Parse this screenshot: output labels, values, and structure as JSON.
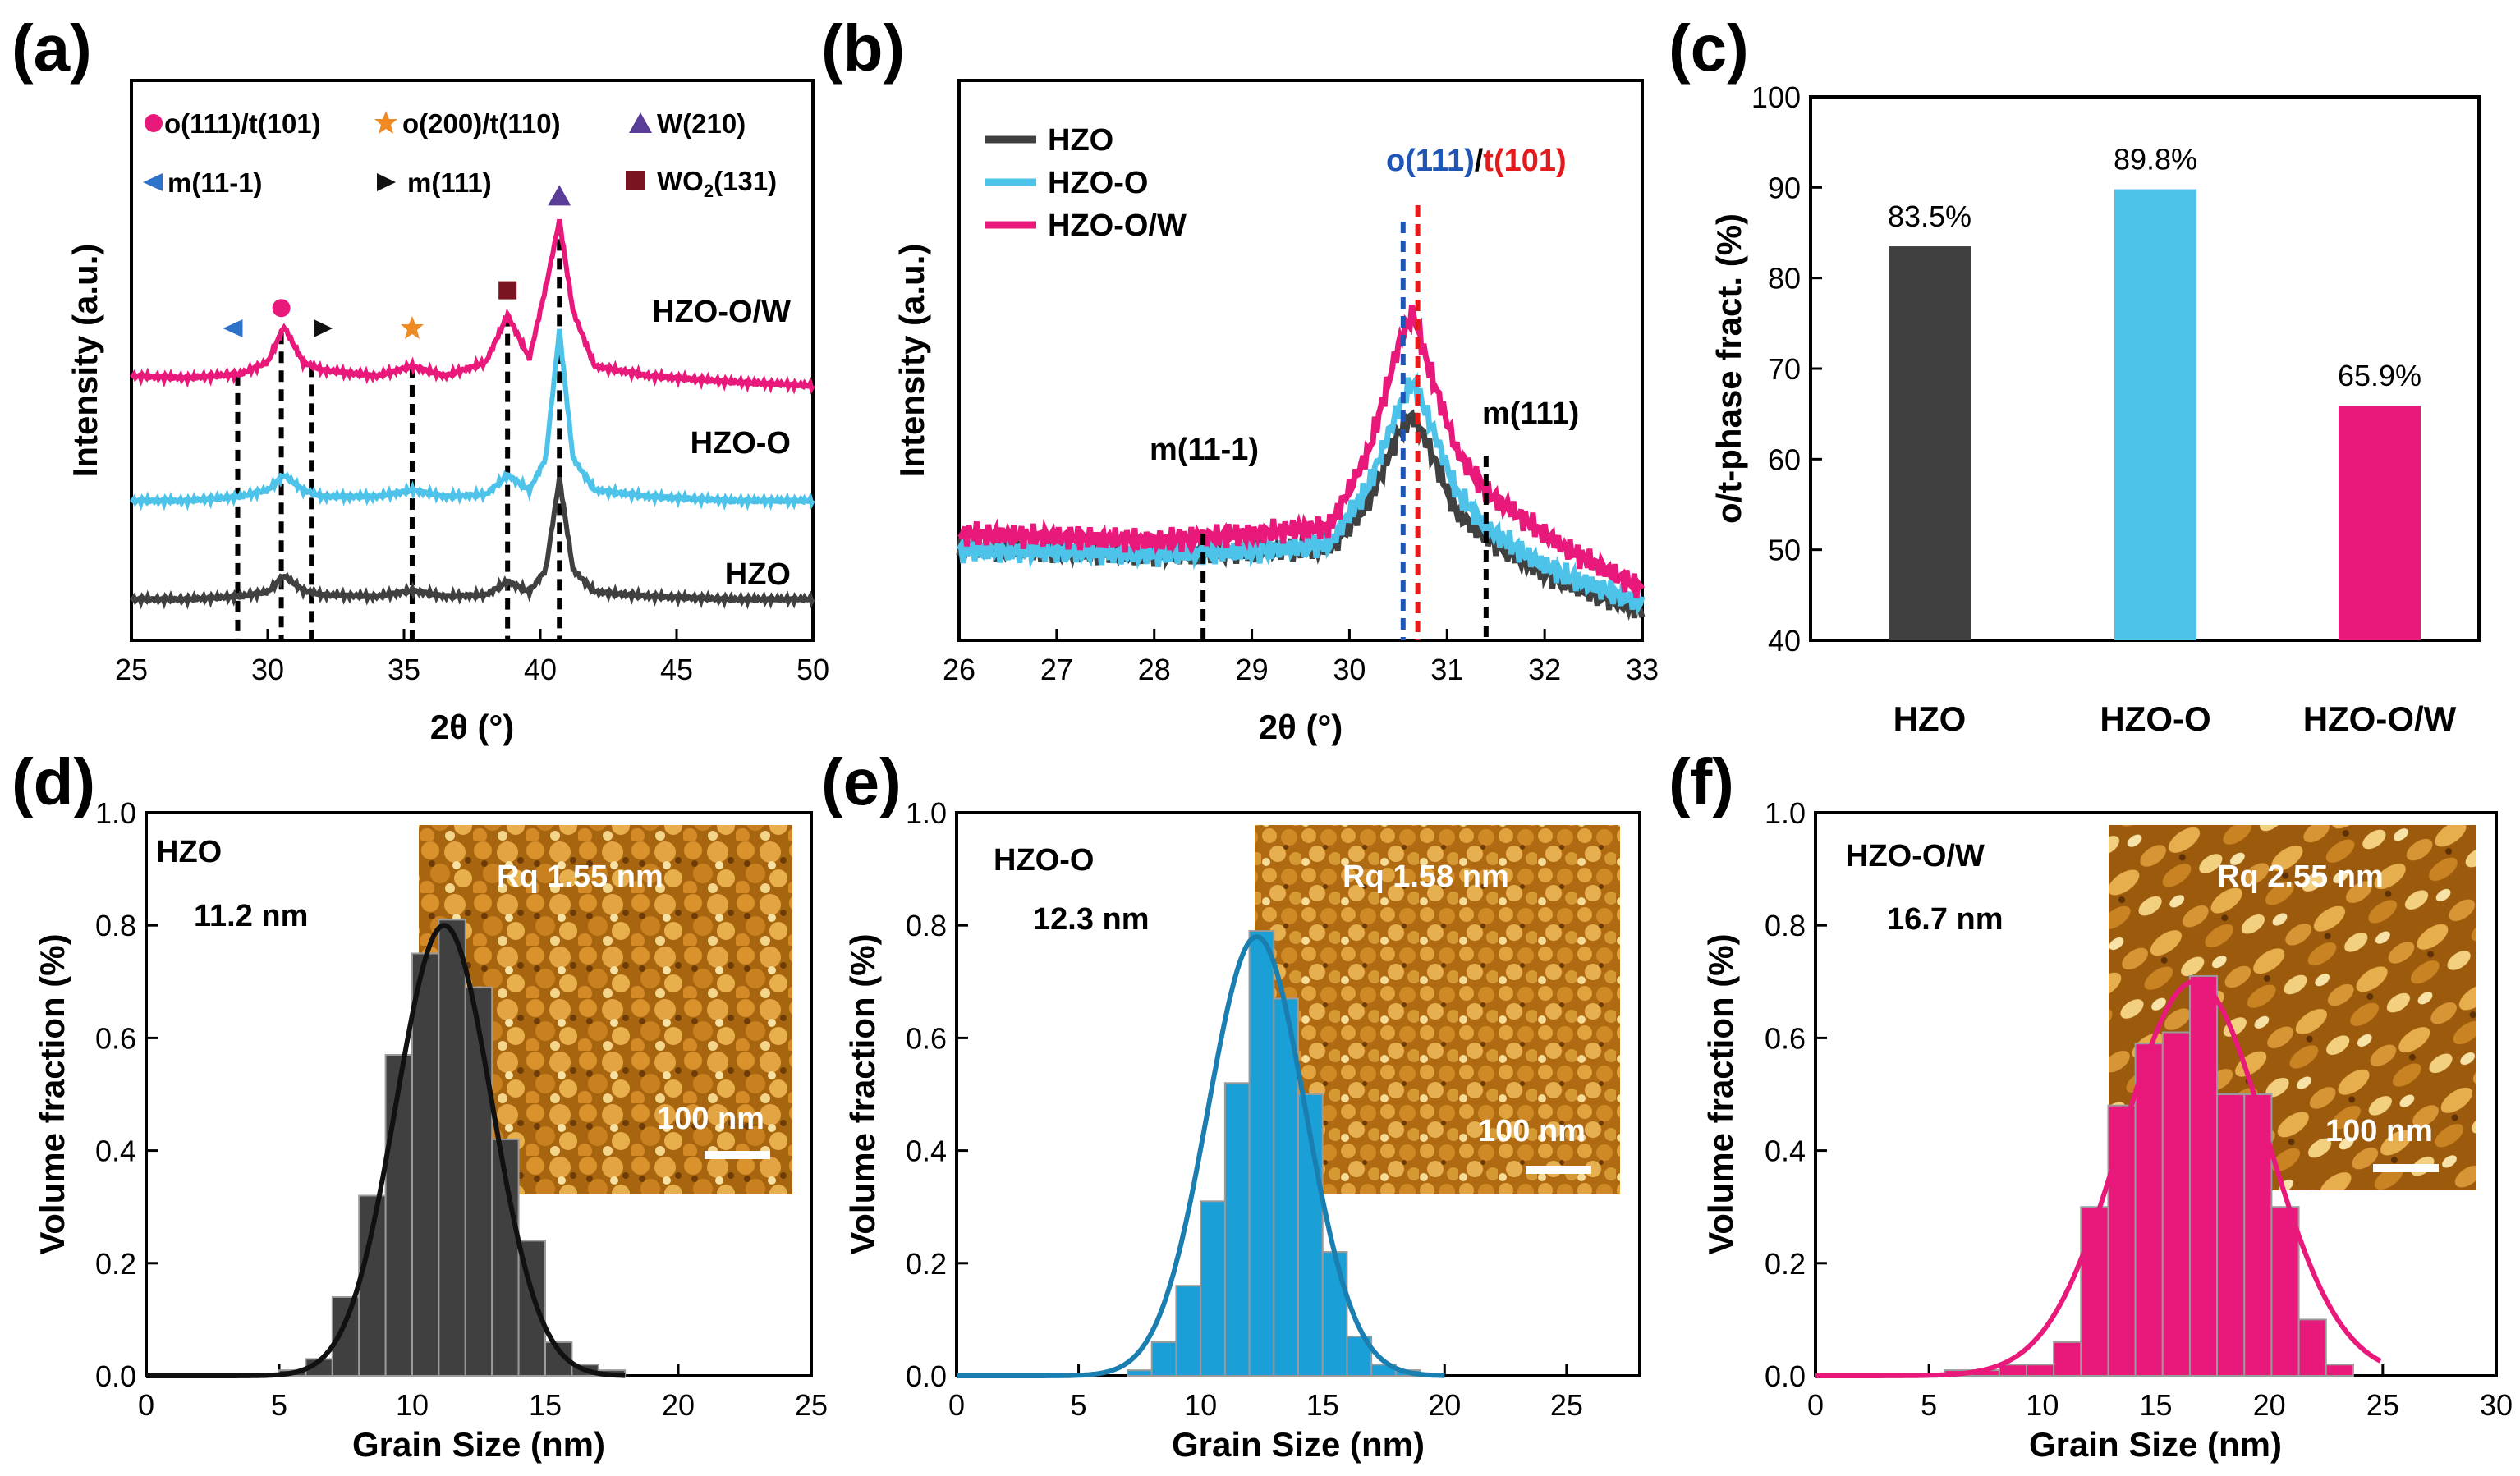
{
  "figure_labels": {
    "a": "(a)",
    "b": "(b)",
    "c": "(c)",
    "d": "(d)",
    "e": "(e)",
    "f": "(f)"
  },
  "colors": {
    "HZO": "#404040",
    "HZO-O": "#4ec3ea",
    "HZO-O/W": "#e8197a",
    "o111": "#1f56b5",
    "t101": "#e41a1c",
    "inset": "#9a5a12"
  },
  "chart_data": [
    {
      "id": "a",
      "type": "line",
      "xlabel": "2θ (°)",
      "ylabel": "Intensity (a.u.)",
      "xlim": [
        25,
        50
      ],
      "xticks": [
        "25",
        "30",
        "35",
        "40",
        "45",
        "50"
      ],
      "series": [
        {
          "name": "HZO",
          "label": "HZO",
          "color": "#404040",
          "x": [
            25,
            27,
            29,
            30,
            30.6,
            31.3,
            32,
            34,
            35.3,
            36.5,
            38,
            38.8,
            39.6,
            40.2,
            40.7,
            41.2,
            42,
            44,
            47,
            50
          ],
          "y": [
            0.0,
            0.0,
            0.02,
            0.05,
            0.16,
            0.06,
            0.03,
            0.02,
            0.06,
            0.02,
            0.03,
            0.12,
            0.05,
            0.2,
            0.82,
            0.2,
            0.05,
            0.02,
            0.0,
            0.0
          ]
        },
        {
          "name": "HZO-O",
          "label": "HZO-O",
          "color": "#4ec3ea",
          "x": [
            25,
            27,
            29,
            30,
            30.6,
            31.3,
            32,
            34,
            35.3,
            36.5,
            38,
            38.8,
            39.6,
            40.2,
            40.7,
            41.2,
            42,
            44,
            47,
            50
          ],
          "y": [
            0.0,
            0.0,
            0.02,
            0.05,
            0.12,
            0.05,
            0.02,
            0.02,
            0.05,
            0.02,
            0.03,
            0.12,
            0.05,
            0.2,
            0.8,
            0.2,
            0.05,
            0.02,
            0.0,
            0.0
          ]
        },
        {
          "name": "HZO-O/W",
          "label": "HZO-O/W",
          "color": "#e8197a",
          "x": [
            25,
            27,
            29,
            30,
            30.6,
            31.3,
            32,
            34,
            35.3,
            36.5,
            38,
            38.8,
            39.6,
            40.2,
            40.7,
            41.2,
            42,
            44,
            47,
            50
          ],
          "y": [
            0.05,
            0.04,
            0.06,
            0.12,
            0.3,
            0.12,
            0.08,
            0.05,
            0.1,
            0.05,
            0.12,
            0.36,
            0.14,
            0.5,
            0.84,
            0.38,
            0.1,
            0.05,
            0.02,
            0.0
          ]
        }
      ],
      "markers": [
        {
          "label": "o(111)/t(101)",
          "symbol": "circle",
          "color": "#e8197a",
          "x": 30.5
        },
        {
          "label": "o(200)/t(110)",
          "symbol": "star",
          "color": "#f08a24",
          "x": 35.3
        },
        {
          "label": "W(210)",
          "symbol": "triangle-up",
          "color": "#5a3d99",
          "x": 40.7
        },
        {
          "label": "m(11-1)",
          "symbol": "triangle-left",
          "color": "#2c73c9",
          "x": 28.9
        },
        {
          "label": "m(111)",
          "symbol": "triangle-right",
          "color": "#111111",
          "x": 31.6
        },
        {
          "label": "WO",
          "label_sub": "2",
          "label_suffix": "(131)",
          "symbol": "square",
          "color": "#7a1420",
          "x": 38.8
        }
      ]
    },
    {
      "id": "b",
      "type": "line",
      "xlabel": "2θ (°)",
      "ylabel": "Intensity (a.u.)",
      "xlim": [
        26,
        33
      ],
      "xticks": [
        "26",
        "27",
        "28",
        "29",
        "30",
        "31",
        "32",
        "33"
      ],
      "series": [
        {
          "name": "HZO",
          "color": "#404040",
          "x": [
            26,
            27,
            28,
            29,
            29.8,
            30.2,
            30.5,
            30.65,
            30.8,
            31.1,
            31.4,
            31.8,
            32.2,
            32.6,
            33
          ],
          "y": [
            0.22,
            0.21,
            0.2,
            0.21,
            0.22,
            0.35,
            0.55,
            0.6,
            0.52,
            0.32,
            0.25,
            0.18,
            0.12,
            0.08,
            0.04
          ]
        },
        {
          "name": "HZO-O",
          "color": "#4ec3ea",
          "x": [
            26,
            27,
            28,
            29,
            29.8,
            30.2,
            30.5,
            30.65,
            30.8,
            31.1,
            31.4,
            31.8,
            32.2,
            32.6,
            33
          ],
          "y": [
            0.21,
            0.21,
            0.2,
            0.21,
            0.23,
            0.4,
            0.62,
            0.7,
            0.6,
            0.38,
            0.28,
            0.2,
            0.14,
            0.1,
            0.06
          ]
        },
        {
          "name": "HZO-O/W",
          "color": "#e8197a",
          "x": [
            26,
            27,
            28,
            29,
            29.8,
            30.2,
            30.5,
            30.65,
            30.8,
            31.1,
            31.4,
            31.8,
            32.2,
            32.6,
            33
          ],
          "y": [
            0.26,
            0.25,
            0.24,
            0.26,
            0.28,
            0.5,
            0.8,
            0.9,
            0.75,
            0.5,
            0.38,
            0.3,
            0.22,
            0.16,
            0.1
          ]
        }
      ],
      "annotations": [
        {
          "text": "m(11-1)",
          "x": 28.5
        },
        {
          "text": "m(111)",
          "x": 31.4
        }
      ],
      "peak_label": {
        "o_part": "o(111)",
        "sep": "/",
        "t_part": "t(101)",
        "o_x": 30.55,
        "t_x": 30.7
      }
    },
    {
      "id": "c",
      "type": "bar",
      "ylabel": "o/t-phase fract. (%)",
      "ylim": [
        40,
        100
      ],
      "yticks": [
        "40",
        "50",
        "60",
        "70",
        "80",
        "90",
        "100"
      ],
      "categories": [
        "HZO",
        "HZO-O",
        "HZO-O/W"
      ],
      "values": [
        83.5,
        89.8,
        65.9
      ],
      "value_labels": [
        "83.5%",
        "89.8%",
        "65.9%"
      ],
      "bar_colors": [
        "#404040",
        "#4ec3ea",
        "#e8197a"
      ]
    },
    {
      "id": "d",
      "type": "bar",
      "xlabel": "Grain Size (nm)",
      "ylabel": "Volume fraction (%)",
      "xlim": [
        0,
        25
      ],
      "ylim": [
        0,
        1.0
      ],
      "xticks": [
        "0",
        "5",
        "10",
        "15",
        "20",
        "25"
      ],
      "yticks": [
        "0.0",
        "0.2",
        "0.4",
        "0.6",
        "0.8",
        "1.0"
      ],
      "sample": "HZO",
      "mean_label": "11.2 nm",
      "mean": 11.2,
      "sigma": 1.8,
      "peak": 0.8,
      "bin_width": 1,
      "bin_starts": [
        3,
        4,
        5,
        6,
        7,
        8,
        9,
        10,
        11,
        12,
        13,
        14,
        15,
        16,
        17
      ],
      "values": [
        0.0,
        0.0,
        0.01,
        0.03,
        0.14,
        0.32,
        0.57,
        0.75,
        0.81,
        0.69,
        0.42,
        0.24,
        0.06,
        0.02,
        0.01
      ],
      "color": "#404040",
      "inset_rq": "Rq 1.55 nm",
      "scalebar": "100 nm"
    },
    {
      "id": "e",
      "type": "bar",
      "xlabel": "Grain Size (nm)",
      "ylabel": "Volume fraction (%)",
      "xlim": [
        0,
        28
      ],
      "ylim": [
        0,
        1.0
      ],
      "xticks": [
        "0",
        "5",
        "10",
        "15",
        "20",
        "25"
      ],
      "yticks": [
        "0.0",
        "0.2",
        "0.4",
        "0.6",
        "0.8",
        "1.0"
      ],
      "sample": "HZO-O",
      "mean_label": "12.3 nm",
      "mean": 12.3,
      "sigma": 2.0,
      "peak": 0.78,
      "bin_width": 1,
      "bin_starts": [
        5,
        6,
        7,
        8,
        9,
        10,
        11,
        12,
        13,
        14,
        15,
        16,
        17,
        18,
        19
      ],
      "values": [
        0.0,
        0.0,
        0.01,
        0.06,
        0.16,
        0.31,
        0.52,
        0.79,
        0.67,
        0.5,
        0.22,
        0.07,
        0.02,
        0.01,
        0.0
      ],
      "color": "#1aa0d6",
      "inset_rq": "Rq 1.58 nm",
      "scalebar": "100 nm"
    },
    {
      "id": "f",
      "type": "bar",
      "xlabel": "Grain Size (nm)",
      "ylabel": "Volume fraction (%)",
      "xlim": [
        0,
        30
      ],
      "ylim": [
        0,
        1.0
      ],
      "xticks": [
        "0",
        "5",
        "10",
        "15",
        "20",
        "25",
        "30"
      ],
      "yticks": [
        "0.0",
        "0.2",
        "0.4",
        "0.6",
        "0.8",
        "1.0"
      ],
      "sample": "HZO-O/W",
      "mean_label": "16.7 nm",
      "mean": 16.7,
      "sigma": 3.2,
      "peak": 0.7,
      "bin_width": 1.2,
      "bin_starts": [
        4.5,
        5.7,
        6.9,
        8.1,
        9.3,
        10.5,
        11.7,
        12.9,
        14.1,
        15.3,
        16.5,
        17.7,
        18.9,
        20.1,
        21.3,
        22.5,
        23.7
      ],
      "values": [
        0.0,
        0.01,
        0.01,
        0.02,
        0.02,
        0.06,
        0.3,
        0.48,
        0.59,
        0.61,
        0.71,
        0.5,
        0.5,
        0.3,
        0.1,
        0.02,
        0.0
      ],
      "color": "#e8197a",
      "inset_rq": "Rq 2.55 nm",
      "scalebar": "100 nm"
    }
  ]
}
